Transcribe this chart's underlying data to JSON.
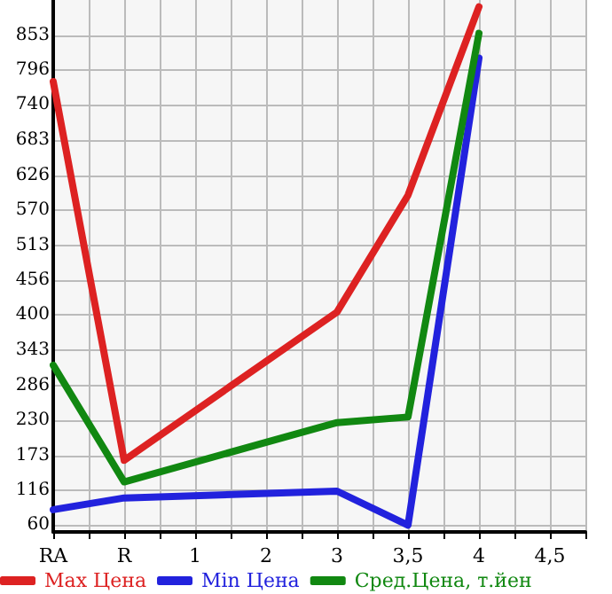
{
  "chart_data": {
    "type": "line",
    "categories": [
      "RA",
      "R",
      "1",
      "2",
      "3",
      "3,5",
      "4",
      "4,5"
    ],
    "series": [
      {
        "name": "Max Цена",
        "color": "#dd2222",
        "values": [
          778,
          165,
          null,
          null,
          405,
          594,
          899,
          null
        ]
      },
      {
        "name": "Min Цена",
        "color": "#2222dd",
        "values": [
          85,
          104,
          null,
          null,
          115,
          60,
          816,
          null
        ]
      },
      {
        "name": "Сред.Цена, т.йен",
        "color": "#118811",
        "values": [
          319,
          130,
          null,
          null,
          226,
          235,
          856,
          null
        ]
      }
    ],
    "ylim": [
      49,
      910
    ],
    "yticks": [
      60,
      116,
      173,
      230,
      286,
      343,
      400,
      456,
      513,
      570,
      626,
      683,
      740,
      796,
      853
    ],
    "grid": true,
    "legend": "bottom",
    "marker": "none",
    "line_style": "solid"
  }
}
